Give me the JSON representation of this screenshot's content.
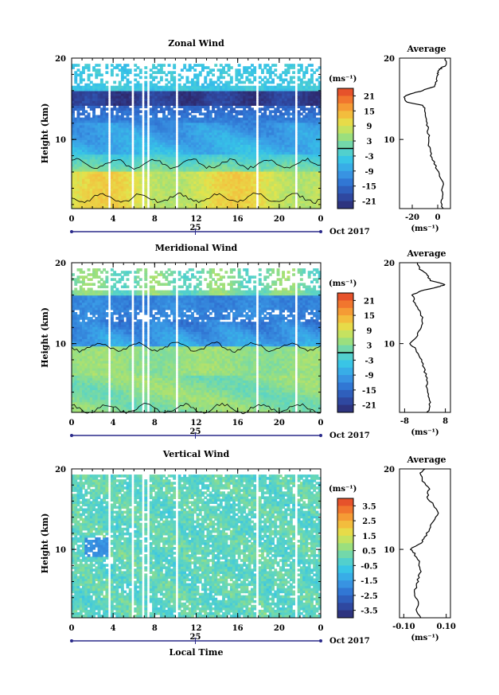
{
  "chart_data": [
    {
      "type": "heatmap",
      "title": "Zonal Wind",
      "ylabel": "Height (km)",
      "xlabel": "",
      "x_ticks": [
        "0",
        "4",
        "8",
        "12",
        "16",
        "20",
        "0"
      ],
      "y_ticks": [
        "20",
        "10"
      ],
      "date_ticks": [
        "25"
      ],
      "date_label": "Oct 2017",
      "xlim": [
        0,
        24
      ],
      "ylim": [
        1.5,
        20
      ],
      "colorbar": {
        "unit": "(ms⁻¹)",
        "ticks": [
          "21",
          "15",
          "9",
          "3",
          "-3",
          "-9",
          "-15",
          "-21"
        ],
        "range": [
          -24,
          24
        ],
        "zero_line": true
      },
      "profile": {
        "title": "Average",
        "x_ticks": [
          "-20",
          "0"
        ],
        "xlim": [
          -30,
          10
        ],
        "x_unit": "(ms⁻¹)",
        "y_ticks": [
          "20",
          "10"
        ],
        "points": [
          [
            4,
            1.5
          ],
          [
            3,
            2.5
          ],
          [
            3.5,
            3.5
          ],
          [
            4,
            4.5
          ],
          [
            2,
            5.5
          ],
          [
            -1,
            6.5
          ],
          [
            -4,
            7.5
          ],
          [
            -6,
            8.5
          ],
          [
            -7,
            9.5
          ],
          [
            -7,
            10.5
          ],
          [
            -8,
            11.5
          ],
          [
            -9,
            12.5
          ],
          [
            -9.5,
            13.5
          ],
          [
            -12,
            14.2
          ],
          [
            -24,
            14.6
          ],
          [
            -27,
            15.2
          ],
          [
            -22,
            15.6
          ],
          [
            -12,
            16.0
          ],
          [
            -3,
            16.5
          ],
          [
            -1,
            17.2
          ],
          [
            0,
            18.0
          ],
          [
            1,
            18.5
          ],
          [
            3,
            18.8
          ],
          [
            7,
            19.2
          ],
          [
            6,
            20.0
          ]
        ]
      }
    },
    {
      "type": "heatmap",
      "title": "Meridional Wind",
      "ylabel": "Height (km)",
      "xlabel": "",
      "x_ticks": [
        "0",
        "4",
        "8",
        "12",
        "16",
        "20",
        "0"
      ],
      "y_ticks": [
        "20",
        "10"
      ],
      "date_ticks": [
        "25"
      ],
      "date_label": "Oct 2017",
      "xlim": [
        0,
        24
      ],
      "ylim": [
        1.5,
        20
      ],
      "colorbar": {
        "unit": "(ms⁻¹)",
        "ticks": [
          "21",
          "15",
          "9",
          "3",
          "-3",
          "-9",
          "-15",
          "-21"
        ],
        "range": [
          -24,
          24
        ],
        "zero_line": true
      },
      "profile": {
        "title": "Average",
        "x_ticks": [
          "-8",
          "8"
        ],
        "xlim": [
          -10,
          10
        ],
        "x_unit": "(ms⁻¹)",
        "y_ticks": [
          "20",
          "10"
        ],
        "points": [
          [
            1,
            1.5
          ],
          [
            2,
            2.5
          ],
          [
            1.5,
            3.5
          ],
          [
            0.5,
            4.5
          ],
          [
            1,
            5.5
          ],
          [
            0,
            6.5
          ],
          [
            -1,
            7.5
          ],
          [
            -2,
            8.5
          ],
          [
            -4,
            9.5
          ],
          [
            -6,
            10.0
          ],
          [
            -3,
            11.0
          ],
          [
            -1.5,
            12.0
          ],
          [
            -1,
            13.0
          ],
          [
            -2,
            14.0
          ],
          [
            -4,
            15.0
          ],
          [
            -5,
            16.0
          ],
          [
            -2,
            16.5
          ],
          [
            5,
            17.0
          ],
          [
            8,
            17.3
          ],
          [
            2,
            17.8
          ],
          [
            1,
            18.5
          ],
          [
            -2,
            19.2
          ],
          [
            -3,
            20.0
          ]
        ]
      }
    },
    {
      "type": "heatmap",
      "title": "Vertical Wind",
      "ylabel": "Height (km)",
      "xlabel": "Local Time",
      "x_ticks": [
        "0",
        "4",
        "8",
        "12",
        "16",
        "20",
        "0"
      ],
      "y_ticks": [
        "20",
        "10"
      ],
      "date_ticks": [
        "25"
      ],
      "date_label": "Oct 2017",
      "xlim": [
        0,
        24
      ],
      "ylim": [
        1.5,
        20
      ],
      "colorbar": {
        "unit": "(ms⁻¹)",
        "ticks": [
          "3.5",
          "2.5",
          "1.5",
          "0.5",
          "-0.5",
          "-1.5",
          "-2.5",
          "-3.5"
        ],
        "range": [
          -4,
          4
        ],
        "zero_line": false
      },
      "profile": {
        "title": "Average",
        "x_ticks": [
          "-0.10",
          "0.10"
        ],
        "xlim": [
          -0.12,
          0.12
        ],
        "x_unit": "(ms⁻¹)",
        "y_ticks": [
          "20",
          "10"
        ],
        "points": [
          [
            -0.02,
            1.5
          ],
          [
            -0.04,
            2.5
          ],
          [
            -0.03,
            3.5
          ],
          [
            -0.05,
            4.5
          ],
          [
            -0.04,
            5.5
          ],
          [
            -0.03,
            6.5
          ],
          [
            -0.02,
            7.5
          ],
          [
            -0.03,
            8.5
          ],
          [
            -0.05,
            9.5
          ],
          [
            -0.07,
            10.0
          ],
          [
            -0.02,
            10.8
          ],
          [
            0.0,
            11.5
          ],
          [
            0.02,
            12.5
          ],
          [
            0.04,
            13.5
          ],
          [
            0.06,
            14.5
          ],
          [
            0.04,
            15.5
          ],
          [
            0.01,
            16.5
          ],
          [
            0.02,
            17.5
          ],
          [
            -0.01,
            18.5
          ],
          [
            -0.02,
            19.5
          ],
          [
            0.0,
            20.0
          ]
        ]
      }
    }
  ]
}
